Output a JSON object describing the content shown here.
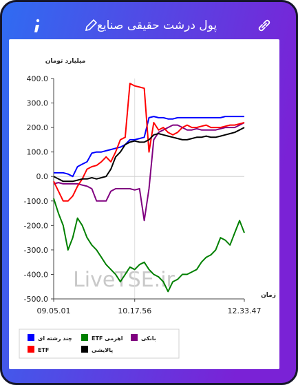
{
  "header": {
    "title": "پول درشت حقیقی صنایع"
  },
  "chart_data": {
    "type": "line",
    "y_label": "میلیارد تومان",
    "x_label": "زمان",
    "watermark": "LiveTSE.ir",
    "categories": [
      "09.05.01",
      null,
      null,
      null,
      null,
      null,
      null,
      null,
      null,
      null,
      null,
      null,
      null,
      null,
      null,
      null,
      null,
      "10.17.56",
      null,
      null,
      null,
      null,
      null,
      null,
      null,
      null,
      null,
      null,
      null,
      null,
      null,
      null,
      null,
      null,
      null,
      null,
      null,
      null,
      null,
      null,
      "12.33.47"
    ],
    "ylim": [
      -500,
      400
    ],
    "yticks": [
      {
        "value": 400,
        "label": "400.0"
      },
      {
        "value": 300,
        "label": "300.0"
      },
      {
        "value": 200,
        "label": "200.0"
      },
      {
        "value": 100,
        "label": "100.0"
      },
      {
        "value": 0,
        "label": "0.0"
      },
      {
        "value": -100,
        "label": "-100.0"
      },
      {
        "value": -200,
        "label": "-200.0"
      },
      {
        "value": -300,
        "label": "-300.0"
      },
      {
        "value": -400,
        "label": "-400.0"
      },
      {
        "value": -500,
        "label": "-500.0"
      }
    ],
    "series": [
      {
        "name": "چند رشته ای",
        "color": "#0000ff",
        "values": [
          15,
          15,
          15,
          10,
          0,
          40,
          50,
          60,
          95,
          100,
          100,
          105,
          110,
          115,
          120,
          130,
          150,
          150,
          155,
          160,
          240,
          245,
          240,
          240,
          235,
          235,
          240,
          240,
          240,
          240,
          240,
          240,
          240,
          240,
          240,
          240,
          245,
          245,
          245,
          245,
          245
        ]
      },
      {
        "name": "ETF اهرمی",
        "color": "#008000",
        "values": [
          -90,
          -150,
          -200,
          -300,
          -250,
          -170,
          -200,
          -250,
          -280,
          -300,
          -330,
          -360,
          -380,
          -400,
          -430,
          -400,
          -370,
          -380,
          -360,
          -350,
          -380,
          -400,
          -410,
          -430,
          -470,
          -430,
          -420,
          -400,
          -400,
          -390,
          -380,
          -350,
          -330,
          -320,
          -300,
          -250,
          -260,
          -280,
          -230,
          -180,
          -230
        ]
      },
      {
        "name": "بانکی",
        "color": "#800080",
        "values": [
          -30,
          -25,
          -30,
          -30,
          -30,
          -30,
          -35,
          -40,
          -50,
          -100,
          -100,
          -100,
          -60,
          -50,
          -50,
          -50,
          -50,
          -55,
          -50,
          -180,
          -50,
          150,
          180,
          190,
          200,
          210,
          210,
          200,
          190,
          190,
          195,
          190,
          190,
          190,
          190,
          195,
          200,
          200,
          200,
          210,
          220
        ]
      },
      {
        "name": "ETF",
        "color": "#ff0000",
        "values": [
          -20,
          -60,
          -100,
          -100,
          -80,
          -40,
          -10,
          30,
          40,
          45,
          60,
          80,
          60,
          100,
          150,
          160,
          380,
          370,
          365,
          360,
          100,
          220,
          190,
          200,
          180,
          170,
          180,
          200,
          210,
          200,
          200,
          205,
          210,
          200,
          200,
          200,
          205,
          210,
          210,
          215,
          220
        ]
      },
      {
        "name": "پالایشی",
        "color": "#000000",
        "values": [
          0,
          -10,
          -20,
          -20,
          -20,
          -15,
          -10,
          -10,
          -5,
          -10,
          -5,
          0,
          30,
          80,
          100,
          130,
          140,
          145,
          140,
          140,
          150,
          170,
          175,
          170,
          165,
          160,
          155,
          150,
          150,
          155,
          160,
          160,
          165,
          160,
          160,
          165,
          170,
          175,
          180,
          190,
          200
        ]
      }
    ]
  }
}
